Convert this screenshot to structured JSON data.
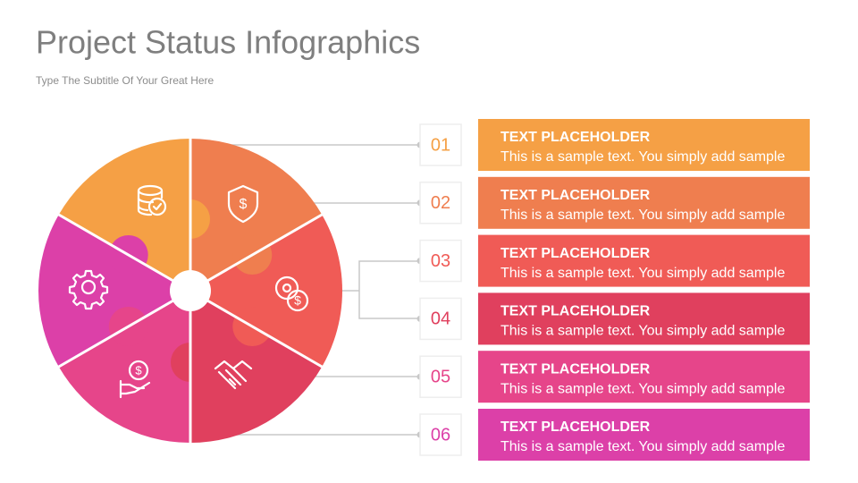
{
  "header": {
    "title": "Project Status Infographics",
    "subtitle": "Type The Subtitle Of Your Great Here"
  },
  "items": [
    {
      "number": "01",
      "title": "TEXT PLACEHOLDER",
      "text": "This is a sample text. You simply add sample"
    },
    {
      "number": "02",
      "title": "TEXT PLACEHOLDER",
      "text": "This is a sample text. You simply add sample"
    },
    {
      "number": "03",
      "title": "TEXT PLACEHOLDER",
      "text": "This is a sample text. You simply add sample"
    },
    {
      "number": "04",
      "title": "TEXT PLACEHOLDER",
      "text": "This is a sample text. You simply add sample"
    },
    {
      "number": "05",
      "title": "TEXT PLACEHOLDER",
      "text": "This is a sample text. You simply add sample"
    },
    {
      "number": "06",
      "title": "TEXT PLACEHOLDER",
      "text": "This is a sample text. You simply add sample"
    }
  ]
}
